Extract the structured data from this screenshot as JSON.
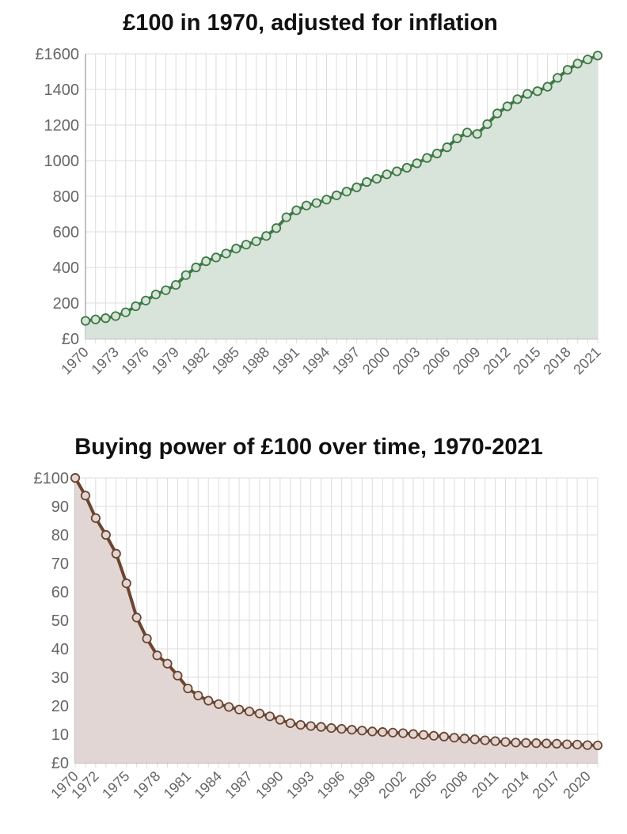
{
  "chart_data": [
    {
      "type": "area",
      "title": "£100 in 1970, adjusted for inflation",
      "xlabel": "",
      "ylabel": "",
      "ylim": [
        0,
        1600
      ],
      "yticks": [
        0,
        200,
        400,
        600,
        800,
        1000,
        1200,
        1400,
        1600
      ],
      "ytick_labels": [
        "£0",
        "200",
        "400",
        "600",
        "800",
        "1000",
        "1200",
        "1400",
        "£1600"
      ],
      "xtick_labels": [
        "1970",
        "1973",
        "1976",
        "1979",
        "1982",
        "1985",
        "1988",
        "1991",
        "1994",
        "1997",
        "2000",
        "2003",
        "2006",
        "2009",
        "2012",
        "2015",
        "2018",
        "2021"
      ],
      "grid": true,
      "line_color": "#3d7a45",
      "fill_color": "#d8e3d9",
      "x": [
        1970,
        1971,
        1972,
        1973,
        1974,
        1975,
        1976,
        1977,
        1978,
        1979,
        1980,
        1981,
        1982,
        1983,
        1984,
        1985,
        1986,
        1987,
        1988,
        1989,
        1990,
        1991,
        1992,
        1993,
        1994,
        1995,
        1996,
        1997,
        1998,
        1999,
        2000,
        2001,
        2002,
        2003,
        2004,
        2005,
        2006,
        2007,
        2008,
        2009,
        2010,
        2011,
        2012,
        2013,
        2014,
        2015,
        2016,
        2017,
        2018,
        2019,
        2020,
        2021
      ],
      "values": [
        100,
        108,
        115,
        127,
        148,
        182,
        214,
        248,
        272,
        302,
        357,
        400,
        435,
        456,
        478,
        506,
        528,
        547,
        577,
        621,
        682,
        721,
        748,
        762,
        781,
        805,
        826,
        850,
        880,
        898,
        923,
        940,
        960,
        985,
        1015,
        1040,
        1075,
        1125,
        1158,
        1150,
        1205,
        1265,
        1305,
        1345,
        1375,
        1390,
        1415,
        1465,
        1510,
        1545,
        1568,
        1590
      ]
    },
    {
      "type": "area",
      "title": "Buying power of £100 over time, 1970-2021",
      "xlabel": "",
      "ylabel": "",
      "ylim": [
        0,
        100
      ],
      "yticks": [
        0,
        10,
        20,
        30,
        40,
        50,
        60,
        70,
        80,
        90,
        100
      ],
      "ytick_labels": [
        "£0",
        "10",
        "20",
        "30",
        "40",
        "50",
        "60",
        "70",
        "80",
        "90",
        "£100"
      ],
      "xtick_labels": [
        "1970",
        "1972",
        "1975",
        "1978",
        "1981",
        "1984",
        "1987",
        "1990",
        "1993",
        "1996",
        "1999",
        "2002",
        "2005",
        "2008",
        "2011",
        "2014",
        "2017",
        "2020"
      ],
      "grid": true,
      "line_color": "#6b4530",
      "fill_color": "#e2d6d4",
      "x": [
        1970,
        1971,
        1972,
        1973,
        1974,
        1975,
        1976,
        1977,
        1978,
        1979,
        1980,
        1981,
        1982,
        1983,
        1984,
        1985,
        1986,
        1987,
        1988,
        1989,
        1990,
        1991,
        1992,
        1993,
        1994,
        1995,
        1996,
        1997,
        1998,
        1999,
        2000,
        2001,
        2002,
        2003,
        2004,
        2005,
        2006,
        2007,
        2008,
        2009,
        2010,
        2011,
        2012,
        2013,
        2014,
        2015,
        2016,
        2017,
        2018,
        2019,
        2020,
        2021
      ],
      "values": [
        100,
        93.8,
        85.9,
        80.0,
        73.4,
        63.0,
        51.0,
        43.6,
        37.7,
        34.8,
        30.6,
        26.1,
        23.6,
        21.8,
        20.6,
        19.6,
        18.7,
        18.0,
        17.3,
        16.3,
        15.1,
        13.9,
        13.3,
        12.9,
        12.6,
        12.2,
        11.9,
        11.6,
        11.3,
        11.0,
        10.8,
        10.6,
        10.4,
        10.1,
        9.8,
        9.5,
        9.2,
        8.8,
        8.5,
        8.2,
        7.9,
        7.6,
        7.3,
        7.1,
        7.0,
        6.9,
        6.8,
        6.7,
        6.5,
        6.4,
        6.2,
        6.1
      ]
    }
  ]
}
